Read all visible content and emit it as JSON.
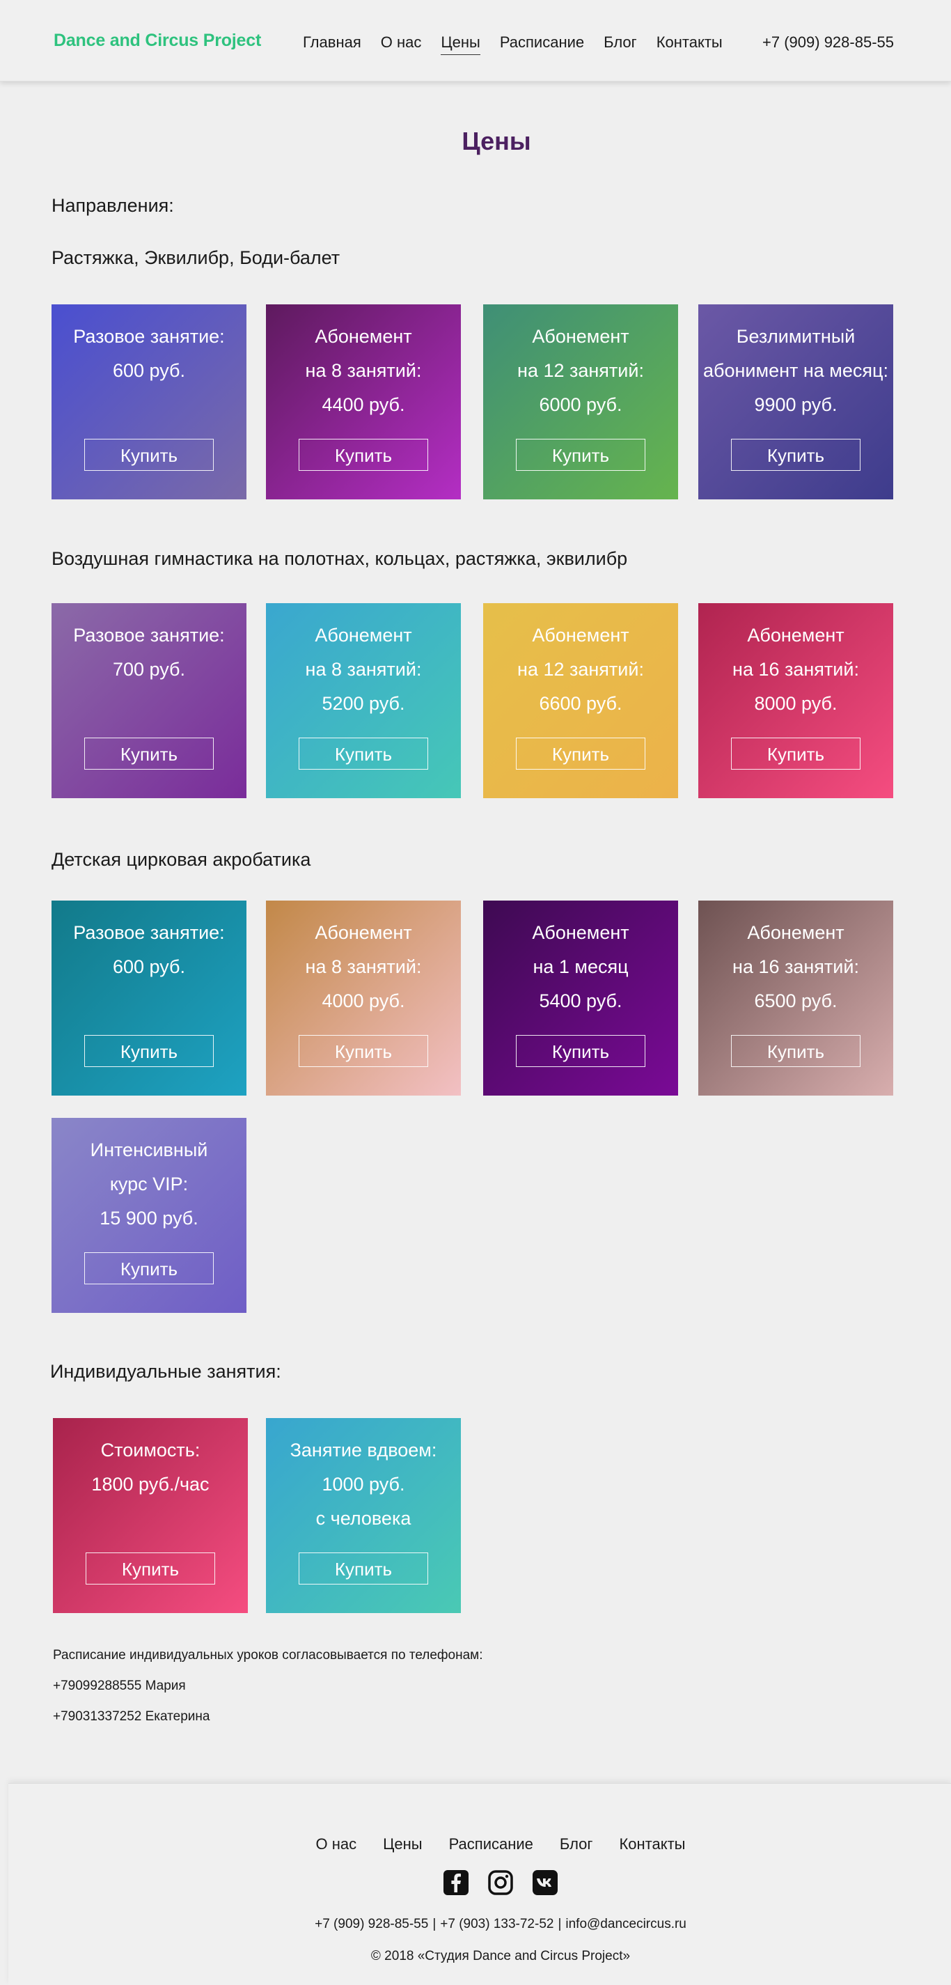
{
  "header": {
    "logo": "Dance and Circus Project",
    "nav": [
      "Главная",
      "О нас",
      "Цены",
      "Расписание",
      "Блог",
      "Контакты"
    ],
    "active": "Цены",
    "phone": "+7 (909) 928-85-55"
  },
  "page_title": "Цены",
  "directions_label": "Направления:",
  "sections": [
    {
      "title": "Растяжка, Эквилибр, Боди-балет",
      "cards": [
        {
          "lines": [
            "Разовое занятие:",
            "600 руб."
          ],
          "button": "Купить",
          "colors": [
            "#4a4fd0",
            "#7a6aa8"
          ]
        },
        {
          "lines": [
            "Абонемент",
            "на 8 занятий:",
            "4400 руб."
          ],
          "button": "Купить",
          "colors": [
            "#5e1a5e",
            "#b42ec4"
          ]
        },
        {
          "lines": [
            "Абонемент",
            "на 12 занятий:",
            "6000 руб."
          ],
          "button": "Купить",
          "colors": [
            "#3f8f76",
            "#66b44e"
          ]
        },
        {
          "lines": [
            "Безлимитный",
            "абонимент на месяц:",
            "9900 руб."
          ],
          "button": "Купить",
          "colors": [
            "#6b58a6",
            "#3e3c8c"
          ]
        }
      ]
    },
    {
      "title": "Воздушная гимнастика на полотнах, кольцах, растяжка, эквилибр",
      "cards": [
        {
          "lines": [
            "Разовое занятие:",
            "700 руб."
          ],
          "button": "Купить",
          "colors": [
            "#8b6aa8",
            "#7a2c9a"
          ]
        },
        {
          "lines": [
            "Абонемент",
            "на 8 занятий:",
            "5200 руб."
          ],
          "button": "Купить",
          "colors": [
            "#3aa7cf",
            "#46c7b7"
          ]
        },
        {
          "lines": [
            "Абонемент",
            "на 12 занятий:",
            "6600 руб."
          ],
          "button": "Купить",
          "colors": [
            "#e6bf4a",
            "#ecb24a"
          ]
        },
        {
          "lines": [
            "Абонемент",
            "на 16 занятий:",
            "8000 руб."
          ],
          "button": "Купить",
          "colors": [
            "#b02450",
            "#f54d80"
          ]
        }
      ]
    },
    {
      "title": "Детская цирковая акробатика",
      "cards": [
        {
          "lines": [
            "Разовое занятие:",
            "600 руб."
          ],
          "button": "Купить",
          "colors": [
            "#127a8a",
            "#1ea2c2"
          ]
        },
        {
          "lines": [
            "Абонемент",
            "на 8 занятий:",
            "4000 руб."
          ],
          "button": "Купить",
          "colors": [
            "#c28848",
            "#f2c0c4"
          ]
        },
        {
          "lines": [
            "Абонемент",
            "на 1 месяц",
            "5400 руб."
          ],
          "button": "Купить",
          "colors": [
            "#3e0a52",
            "#7a0a96"
          ]
        },
        {
          "lines": [
            "Абонемент",
            "на 16 занятий:",
            "6500 руб."
          ],
          "button": "Купить",
          "colors": [
            "#6e5252",
            "#d8aeae"
          ]
        },
        {
          "lines": [
            "Интенсивный",
            "курс VIP:",
            "15 900 руб."
          ],
          "button": "Купить",
          "colors": [
            "#8a86c8",
            "#6f5ec6"
          ]
        }
      ]
    }
  ],
  "individual": {
    "title": "Индивидуальные занятия:",
    "cards": [
      {
        "lines": [
          "Стоимость:",
          "1800 руб./час"
        ],
        "button": "Купить",
        "colors": [
          "#a8234c",
          "#f54d80"
        ]
      },
      {
        "lines": [
          "Занятие вдвоем:",
          "1000 руб.",
          "с человека"
        ],
        "button": "Купить",
        "colors": [
          "#38a6cf",
          "#4ac9b4"
        ]
      }
    ]
  },
  "notes": [
    "Расписание индивидуальных уроков согласовывается по телефонам:",
    "+79099288555 Мария",
    "+79031337252 Екатерина"
  ],
  "footer": {
    "nav": [
      "О нас",
      "Цены",
      "Расписание",
      "Блог",
      "Контакты"
    ],
    "social": [
      "facebook-icon",
      "instagram-icon",
      "vk-icon"
    ],
    "contacts": [
      "+7 (909) 928-85-55",
      "+7 (903) 133-72-52",
      "info@dancecircus.ru"
    ],
    "copyright": "© 2018 «Студия Dance and Circus Project»"
  }
}
